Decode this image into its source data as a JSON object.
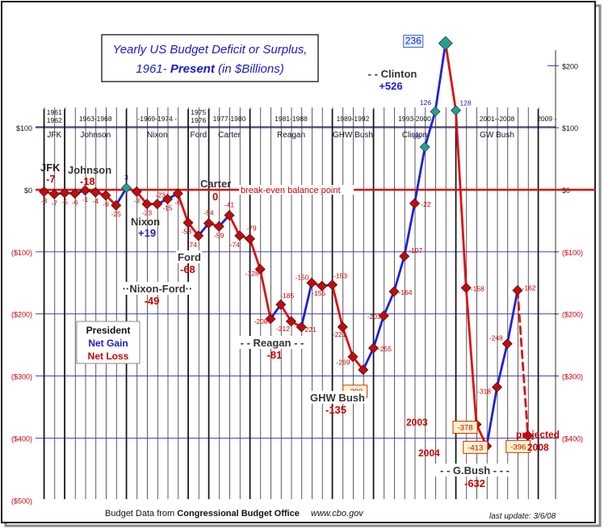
{
  "chart_data": {
    "type": "line",
    "title_line1": "Yearly US Budget Deficit or Surplus,",
    "title_line2a": "1961- ",
    "title_line2b": "Present",
    "title_line2c": " (in $Billions)",
    "ylim": [
      -500,
      200
    ],
    "xlim": [
      1961,
      2009
    ],
    "y_ticks": [
      {
        "value": 100,
        "left": "$100",
        "right": "$100"
      },
      {
        "value": 0,
        "left": "$0",
        "right": "$0"
      },
      {
        "value": -100,
        "left": "($100)",
        "right": "($100)"
      },
      {
        "value": -200,
        "left": "($200)",
        "right": "($200)"
      },
      {
        "value": -300,
        "left": "($300)",
        "right": "($300)"
      },
      {
        "value": -400,
        "left": "($400)",
        "right": "($400)"
      },
      {
        "value": -500,
        "left": "($500)",
        "right": ""
      }
    ],
    "extra_right_tick": {
      "value": 200,
      "label": "$200"
    },
    "baseline_label": "break-even balance point",
    "colors": {
      "gain": "#1f1fdd",
      "loss": "#dd1111",
      "text_red": "#cc0000",
      "text_blue": "#1a1acc",
      "marker_red": "#b81010",
      "marker_teal": "#2a9d8f",
      "grid": "#2b2bbd"
    },
    "points": [
      {
        "year": 1961,
        "value": -3,
        "label": "-3"
      },
      {
        "year": 1962,
        "value": -7,
        "label": "-7"
      },
      {
        "year": 1963,
        "value": -5,
        "label": "-5"
      },
      {
        "year": 1964,
        "value": -6,
        "label": "-6"
      },
      {
        "year": 1965,
        "value": -1,
        "label": "-1"
      },
      {
        "year": 1966,
        "value": -4,
        "label": "-4"
      },
      {
        "year": 1967,
        "value": -9,
        "label": "-9"
      },
      {
        "year": 1968,
        "value": -25,
        "label": "-25"
      },
      {
        "year": 1969,
        "value": 3,
        "label": "3"
      },
      {
        "year": 1970,
        "value": -3,
        "label": "-3"
      },
      {
        "year": 1971,
        "value": -23,
        "label": "-23"
      },
      {
        "year": 1972,
        "value": -23,
        "label": "-23"
      },
      {
        "year": 1973,
        "value": -15,
        "label": "-15"
      },
      {
        "year": 1974,
        "value": -6,
        "label": "-6"
      },
      {
        "year": 1975,
        "value": -53,
        "label": "-53"
      },
      {
        "year": 1976,
        "value": -74,
        "label": "-74"
      },
      {
        "year": 1977,
        "value": -54,
        "label": "-54"
      },
      {
        "year": 1978,
        "value": -59,
        "label": "-59"
      },
      {
        "year": 1979,
        "value": -41,
        "label": "-41"
      },
      {
        "year": 1980,
        "value": -74,
        "label": "-74"
      },
      {
        "year": 1981,
        "value": -79,
        "label": "-79"
      },
      {
        "year": 1982,
        "value": -128,
        "label": "-128"
      },
      {
        "year": 1983,
        "value": -208,
        "label": "-208"
      },
      {
        "year": 1984,
        "value": -185,
        "label": "-185"
      },
      {
        "year": 1985,
        "value": -212,
        "label": "-212"
      },
      {
        "year": 1986,
        "value": -221,
        "label": "-221"
      },
      {
        "year": 1987,
        "value": -150,
        "label": "-150"
      },
      {
        "year": 1988,
        "value": -155,
        "label": "-155"
      },
      {
        "year": 1989,
        "value": -153,
        "label": "-153"
      },
      {
        "year": 1990,
        "value": -221,
        "label": "-221"
      },
      {
        "year": 1991,
        "value": -269,
        "label": "-269"
      },
      {
        "year": 1992,
        "value": -290,
        "label": "-290"
      },
      {
        "year": 1993,
        "value": -255,
        "label": "-255"
      },
      {
        "year": 1994,
        "value": -203,
        "label": "-203"
      },
      {
        "year": 1995,
        "value": -164,
        "label": "-164"
      },
      {
        "year": 1996,
        "value": -107,
        "label": "-107"
      },
      {
        "year": 1997,
        "value": -22,
        "label": "-22"
      },
      {
        "year": 1998,
        "value": 69,
        "label": "69"
      },
      {
        "year": 1999,
        "value": 126,
        "label": "126"
      },
      {
        "year": 2000,
        "value": 236,
        "label": "236"
      },
      {
        "year": 2001,
        "value": 128,
        "label": "128"
      },
      {
        "year": 2002,
        "value": -158,
        "label": "-158"
      },
      {
        "year": 2003,
        "value": -378,
        "label": "-378"
      },
      {
        "year": 2004,
        "value": -413,
        "label": "-413"
      },
      {
        "year": 2005,
        "value": -318,
        "label": "-318"
      },
      {
        "year": 2006,
        "value": -248,
        "label": "-248"
      },
      {
        "year": 2007,
        "value": -162,
        "label": "-162"
      },
      {
        "year": 2008,
        "value": -396,
        "label": "-396",
        "projected": true
      }
    ],
    "administrations": [
      {
        "years": "1961\n1962",
        "president": "JFK",
        "start": 1961,
        "end": 1963
      },
      {
        "years": "1963-1968",
        "president": "Johnson",
        "start": 1963,
        "end": 1969
      },
      {
        "years": "-1969-1974 -",
        "president": "Nixon",
        "start": 1969,
        "end": 1975
      },
      {
        "years": "1975\n1976",
        "president": "Ford",
        "start": 1975,
        "end": 1977
      },
      {
        "years": "1977-1980",
        "president": "Carter",
        "start": 1977,
        "end": 1981
      },
      {
        "years": "1981-1988",
        "president": "Reagan",
        "start": 1981,
        "end": 1989
      },
      {
        "years": "1989-1992",
        "president": "GHW Bush",
        "start": 1989,
        "end": 1993
      },
      {
        "years": "1993-2000",
        "president": "Clinton",
        "start": 1993,
        "end": 2001
      },
      {
        "years": "2001--2008",
        "president": "GW Bush",
        "start": 2001,
        "end": 2009
      },
      {
        "years": "2009 -",
        "president": "",
        "start": 2009,
        "end": 2011
      }
    ],
    "annotations": {
      "jfk_name": "JFK",
      "jfk_val": "-7",
      "johnson_name": "Johnson",
      "johnson_val": "-18",
      "carter_name": "Carter",
      "carter_val": "0",
      "nixon_name": "Nixon",
      "nixon_val": "+19",
      "ford_name": "Ford",
      "ford_val": "-68",
      "nixonford_name": "Nixon-Ford",
      "nixonford_val": "-49",
      "reagan_name": "Reagan",
      "reagan_val": "-81",
      "ghwbush_name": "GHW Bush",
      "ghwbush_val": "-135",
      "clinton_name": "Clinton",
      "clinton_val": "+526",
      "gbush_name": "G.Bush",
      "gbush_val": "-632",
      "year2003": "2003",
      "year2004": "2004",
      "projected": "projected",
      "projected_year": "2008"
    },
    "legend": {
      "title": "President",
      "gain": "Net Gain",
      "loss": "Net Loss"
    },
    "footer": {
      "source_prefix": "Budget Data from ",
      "source_bold": "Congressional Budget Office",
      "source_url": "www.cbo.gov",
      "last_update": "last update: 3/6/08"
    }
  }
}
